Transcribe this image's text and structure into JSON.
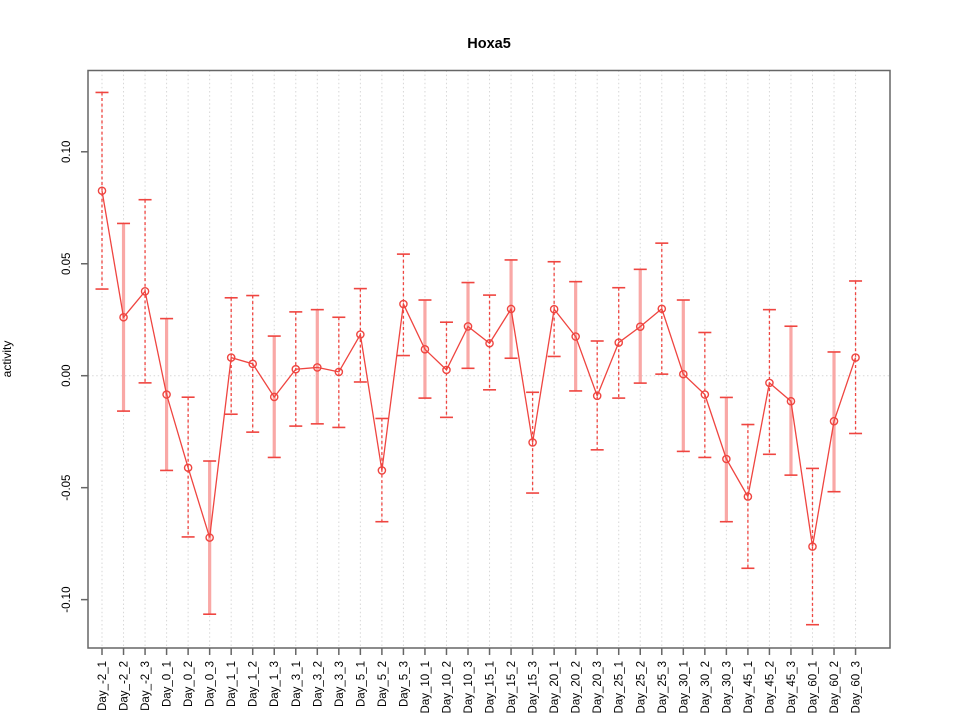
{
  "chart_data": {
    "type": "line",
    "title": "Hoxa5",
    "xlabel": "",
    "ylabel": "activity",
    "grid": "dotted vertical at each category, dotted horizontal at zero",
    "legend": "none",
    "ylim": [
      -0.1216,
      0.1363
    ],
    "yticks": [
      -0.1,
      -0.05,
      0.0,
      0.05,
      0.1
    ],
    "ytick_labels": [
      "-0.10",
      "-0.05",
      "0.00",
      "0.05",
      "0.10"
    ],
    "categories": [
      "Day_-2_1",
      "Day_-2_2",
      "Day_-2_3",
      "Day_0_1",
      "Day_0_2",
      "Day_0_3",
      "Day_1_1",
      "Day_1_2",
      "Day_1_3",
      "Day_3_1",
      "Day_3_2",
      "Day_3_3",
      "Day_5_1",
      "Day_5_2",
      "Day_5_3",
      "Day_10_1",
      "Day_10_2",
      "Day_10_3",
      "Day_15_1",
      "Day_15_2",
      "Day_15_3",
      "Day_20_1",
      "Day_20_2",
      "Day_20_3",
      "Day_25_1",
      "Day_25_2",
      "Day_25_3",
      "Day_30_1",
      "Day_30_2",
      "Day_30_3",
      "Day_45_1",
      "Day_45_2",
      "Day_45_3",
      "Day_60_1",
      "Day_60_2",
      "Day_60_3"
    ],
    "values": [
      0.0826,
      0.0261,
      0.0377,
      -0.0084,
      -0.0411,
      -0.0723,
      0.0081,
      0.0053,
      -0.0095,
      0.0029,
      0.0037,
      0.0017,
      0.0184,
      -0.0423,
      0.032,
      0.0118,
      0.0026,
      0.022,
      0.0145,
      0.0298,
      -0.0298,
      0.0297,
      0.0175,
      -0.009,
      0.0148,
      0.0219,
      0.0299,
      0.0007,
      -0.0084,
      -0.0372,
      -0.054,
      -0.0032,
      -0.0114,
      -0.0763,
      -0.0203,
      0.0081
    ],
    "error_low": [
      0.0387,
      -0.0158,
      -0.0032,
      -0.0423,
      -0.072,
      -0.1065,
      -0.0172,
      -0.0252,
      -0.0365,
      -0.0225,
      -0.0215,
      -0.0231,
      -0.0028,
      -0.0652,
      0.009,
      -0.01,
      -0.0186,
      0.0033,
      -0.0063,
      0.0078,
      -0.0524,
      0.0086,
      -0.0068,
      -0.0331,
      -0.01,
      -0.0033,
      0.0007,
      -0.0338,
      -0.0365,
      -0.0652,
      -0.086,
      -0.0351,
      -0.0444,
      -0.1112,
      -0.0518,
      -0.0258
    ],
    "error_high": [
      0.1265,
      0.068,
      0.0786,
      0.0255,
      -0.0096,
      -0.0381,
      0.0348,
      0.0358,
      0.0177,
      0.0285,
      0.0295,
      0.0261,
      0.0389,
      -0.0191,
      0.0543,
      0.0338,
      0.0239,
      0.0416,
      0.036,
      0.0517,
      -0.0074,
      0.0509,
      0.042,
      0.0155,
      0.0393,
      0.0475,
      0.0592,
      0.0338,
      0.0193,
      -0.0097,
      -0.0218,
      0.0295,
      0.0221,
      -0.0414,
      0.0106,
      0.0423
    ],
    "bar_style_light_indices": [
      1,
      3,
      5,
      8,
      10,
      15,
      17,
      19,
      22,
      25,
      27,
      29,
      32,
      34
    ],
    "colors": {
      "series_red": "#ef4540",
      "error_bar_light": "#f9a8a6",
      "grid": "#d7d7d7",
      "zero_line": "#d7d7d7",
      "frame": "#666666",
      "text": "#000000"
    }
  }
}
